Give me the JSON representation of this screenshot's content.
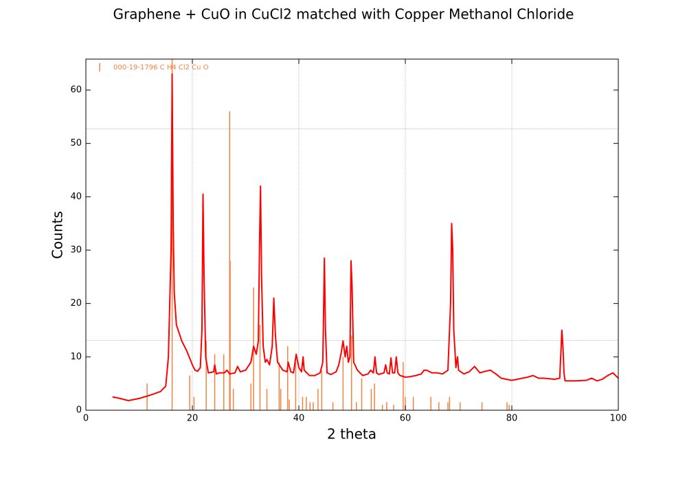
{
  "chart_data": {
    "type": "line",
    "title": "Graphene + CuO in CuCl2 matched with Copper Methanol Chloride",
    "xlabel": "2 theta",
    "ylabel": "Counts",
    "xlim": [
      0,
      100
    ],
    "ylim": [
      0,
      65.8
    ],
    "xticks": [
      0,
      20,
      40,
      60,
      80,
      100
    ],
    "yticks": [
      0,
      10,
      20,
      30,
      40,
      50,
      60
    ],
    "grid": true,
    "ygrid": [
      13.1,
      52.7
    ],
    "legend": "upper left",
    "series": [
      {
        "type": "line",
        "color": "#ff0000",
        "x": [
          5,
          6,
          8,
          10,
          12,
          14,
          15,
          15.5,
          15.8,
          16.0,
          16.2,
          16.4,
          16.6,
          17,
          18,
          19,
          20,
          20.5,
          21,
          21.5,
          21.8,
          22.0,
          22.2,
          22.5,
          23,
          24,
          24.2,
          24.5,
          25,
          26,
          26.5,
          27,
          28,
          28.5,
          29,
          30,
          31,
          31.5,
          32,
          32.4,
          32.6,
          32.8,
          33.0,
          33.3,
          33.7,
          34,
          34.5,
          35,
          35.3,
          35.6,
          36,
          37,
          37.8,
          38,
          38.5,
          39,
          39.5,
          40,
          40.5,
          40.8,
          41,
          42,
          43,
          44,
          44.5,
          44.8,
          45.0,
          45.3,
          46,
          47,
          47.5,
          48,
          48.3,
          48.7,
          49,
          49.3,
          49.6,
          49.8,
          50.0,
          50.3,
          51,
          52,
          53,
          53.5,
          54,
          54.3,
          54.6,
          55,
          56,
          56.3,
          56.6,
          57,
          57.3,
          57.6,
          58,
          58.3,
          58.6,
          59,
          60,
          61,
          62,
          63,
          63.5,
          64,
          65,
          66,
          67,
          68,
          68.5,
          68.7,
          68.9,
          69.1,
          69.5,
          69.8,
          70,
          71,
          72,
          73,
          74,
          75,
          76,
          77,
          78,
          79,
          80,
          81,
          82,
          83,
          84,
          85,
          86,
          87,
          88,
          89,
          89.4,
          89.6,
          89.8,
          90,
          92,
          94,
          95,
          96,
          97,
          98,
          99,
          100
        ],
        "values": [
          2.5,
          2.3,
          1.8,
          2.2,
          2.8,
          3.5,
          4.5,
          10,
          22,
          30,
          63,
          35,
          22,
          16,
          13,
          11,
          8.5,
          7.5,
          7.3,
          8,
          15,
          40.5,
          25,
          10,
          7,
          7.2,
          8.5,
          6.8,
          7,
          7,
          7.5,
          6.8,
          7,
          8.2,
          7.2,
          7.5,
          9,
          12,
          10.5,
          13,
          30,
          42,
          25,
          12,
          9,
          9.5,
          8.5,
          12,
          21,
          14,
          9,
          7.5,
          7.2,
          9,
          7.2,
          7,
          10.5,
          8,
          7.2,
          10,
          7.5,
          6.5,
          6.5,
          7,
          9,
          28.5,
          15,
          7,
          6.7,
          7.2,
          8.5,
          11,
          13,
          10,
          12,
          9,
          10,
          28,
          23,
          9,
          7.5,
          6.5,
          6.8,
          7.5,
          7,
          10,
          7,
          6.7,
          7,
          8.5,
          7,
          6.8,
          9.8,
          7,
          7,
          10,
          7,
          6.5,
          6.2,
          6.3,
          6.5,
          6.8,
          7.5,
          7.5,
          7,
          7,
          6.8,
          7.5,
          20,
          35,
          30,
          15,
          8,
          10,
          7.5,
          6.8,
          7.2,
          8.2,
          7,
          7.3,
          7.5,
          6.8,
          6,
          5.8,
          5.6,
          5.8,
          6,
          6.2,
          6.5,
          6,
          6,
          5.9,
          5.8,
          6,
          15,
          12,
          7,
          5.5,
          5.5,
          5.6,
          6,
          5.5,
          5.8,
          6.5,
          7,
          6
        ]
      },
      {
        "type": "stems",
        "name": "000-19-1796 C H4 Cl2 Cu O",
        "color": "#f5813f",
        "x": [
          11.5,
          16.2,
          19.5,
          20.3,
          22.6,
          24.2,
          25.9,
          27.0,
          27.1,
          27.7,
          31.0,
          31.5,
          32.7,
          34.0,
          36.3,
          36.6,
          37.9,
          38.2,
          39.4,
          40.7,
          41.4,
          42.1,
          42.7,
          43.6,
          44.3,
          46.4,
          48.3,
          49.9,
          50.8,
          51.8,
          53.6,
          54.2,
          55.7,
          56.5,
          57.8,
          59.6,
          60.0,
          61.5,
          64.8,
          66.3,
          68.0,
          68.3,
          70.3,
          74.4,
          79.1,
          79.5
        ],
        "values": [
          5,
          100,
          6.5,
          2.5,
          13,
          10.5,
          10.5,
          56,
          28,
          4,
          5,
          23,
          16,
          4,
          9,
          4,
          12,
          2,
          9,
          2.5,
          2.5,
          1.5,
          1.5,
          4,
          7.5,
          1.5,
          10,
          14,
          1.5,
          6,
          4,
          5,
          1,
          1.5,
          1,
          9,
          2.5,
          2.5,
          2.5,
          1.5,
          1.5,
          2.5,
          1.5,
          1.5,
          1.5,
          1
        ]
      }
    ]
  }
}
